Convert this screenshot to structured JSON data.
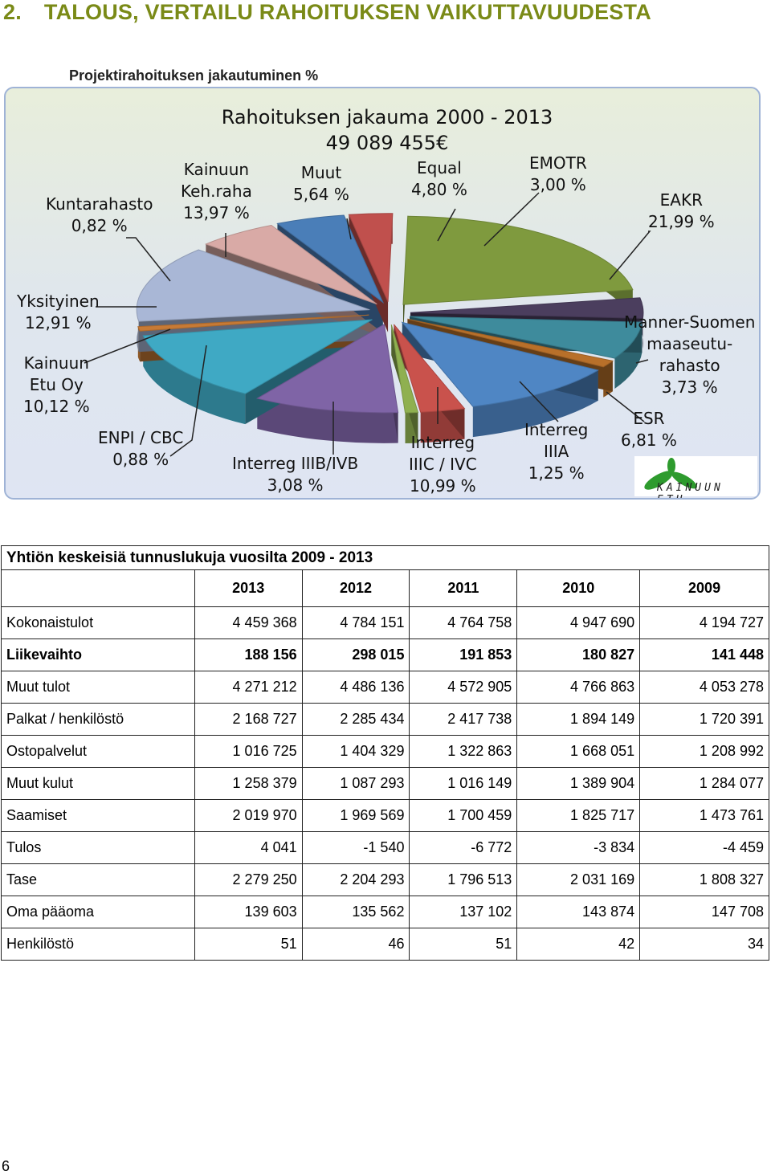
{
  "heading": {
    "number": "2.",
    "title": "TALOUS, VERTAILU RAHOITUKSEN VAIKUTTAVUUDESTA"
  },
  "subtitle": "Projektirahoituksen jakautuminen %",
  "colors": {
    "heading": "#7a8a17",
    "eakr": "#7f9a3e",
    "esr": "#3e8b9c",
    "manner": "#4b3e5e",
    "interreg_iiia": "#b8702a",
    "interreg_iiic": "#4f86c4",
    "interreg_iiib": "#c9524c",
    "enpi": "#8fb050",
    "etu_oy": "#7f64a6",
    "yksityinen": "#3fa9c4",
    "kuntarahasto": "#c77a35",
    "keh_raha": "#a9b7d6",
    "muut": "#d9aaa6",
    "equal": "#4a7eb8",
    "emotr": "#c0504d"
  },
  "chart_data": {
    "type": "pie",
    "title": "Rahoituksen jakauma 2000 - 2013",
    "subtitle": "49 089 455€",
    "slices": [
      {
        "label": "EAKR",
        "value": 21.99,
        "text": "21,99 %"
      },
      {
        "label": "Manner-Suomen maaseutu-rahasto",
        "value": 3.73,
        "text": "3,73 %"
      },
      {
        "label": "ESR",
        "value": 6.81,
        "text": "6,81 %"
      },
      {
        "label": "Interreg IIIA",
        "value": 1.25,
        "text": "1,25 %"
      },
      {
        "label": "Interreg IIIC / IVC",
        "value": 10.99,
        "text": "10,99 %"
      },
      {
        "label": "Interreg IIIB/IVB",
        "value": 3.08,
        "text": "3,08 %"
      },
      {
        "label": "ENPI / CBC",
        "value": 0.88,
        "text": "0,88 %"
      },
      {
        "label": "Kainuun Etu Oy",
        "value": 10.12,
        "text": "10,12 %"
      },
      {
        "label": "Yksityinen",
        "value": 12.91,
        "text": "12,91 %"
      },
      {
        "label": "Kuntarahasto",
        "value": 0.82,
        "text": "0,82 %"
      },
      {
        "label": "Kainuun Keh.raha",
        "value": 13.97,
        "text": "13,97 %"
      },
      {
        "label": "Muut",
        "value": 5.64,
        "text": "5,64 %"
      },
      {
        "label": "Equal",
        "value": 4.8,
        "text": "4,80 %"
      },
      {
        "label": "EMOTR",
        "value": 3.0,
        "text": "3,00 %"
      }
    ]
  },
  "chart_labels": {
    "eakr": [
      "EAKR",
      "21,99 %"
    ],
    "emotr": [
      "EMOTR",
      "3,00 %"
    ],
    "equal": [
      "Equal",
      "4,80 %"
    ],
    "muut": [
      "Muut",
      "5,64 %"
    ],
    "keh": [
      "Kainuun",
      "Keh.raha",
      "13,97 %"
    ],
    "kunta": [
      "Kuntarahasto",
      "0,82 %"
    ],
    "yks": [
      "Yksityinen",
      "12,91 %"
    ],
    "etu": [
      "Kainuun",
      "Etu Oy",
      "10,12 %"
    ],
    "enpi": [
      "ENPI / CBC",
      "0,88 %"
    ],
    "iiib": [
      "Interreg IIIB/IVB",
      "3,08 %"
    ],
    "iiic": [
      "Interreg",
      "IIIC / IVC",
      "10,99 %"
    ],
    "iiia": [
      "Interreg",
      "IIIA",
      "1,25 %"
    ],
    "esr": [
      "ESR",
      "6,81 %"
    ],
    "manner": [
      "Manner-Suomen",
      "maaseutu-",
      "rahasto",
      "3,73 %"
    ]
  },
  "logo_text": "KAINUUN ETU",
  "table": {
    "caption": "Yhtiön keskeisiä tunnuslukuja vuosilta 2009 - 2013",
    "years": [
      "2013",
      "2012",
      "2011",
      "2010",
      "2009"
    ],
    "rows": [
      {
        "name": "Kokonaistulot",
        "bold": false,
        "values": [
          "4 459 368",
          "4 784 151",
          "4 764 758",
          "4 947 690",
          "4 194 727"
        ]
      },
      {
        "name": "Liikevaihto",
        "bold": true,
        "values": [
          "188 156",
          "298 015",
          "191 853",
          "180 827",
          "141 448"
        ]
      },
      {
        "name": "Muut tulot",
        "bold": false,
        "values": [
          "4 271 212",
          "4 486 136",
          "4 572 905",
          "4 766 863",
          "4 053 278"
        ]
      },
      {
        "name": "Palkat / henkilöstö",
        "bold": false,
        "values": [
          "2 168 727",
          "2 285 434",
          "2 417 738",
          "1 894 149",
          "1 720 391"
        ]
      },
      {
        "name": "Ostopalvelut",
        "bold": false,
        "values": [
          "1 016 725",
          "1 404 329",
          "1 322 863",
          "1 668 051",
          "1 208 992"
        ]
      },
      {
        "name": "Muut kulut",
        "bold": false,
        "values": [
          "1 258 379",
          "1 087 293",
          "1 016 149",
          "1 389 904",
          "1 284 077"
        ]
      },
      {
        "name": "Saamiset",
        "bold": false,
        "values": [
          "2 019 970",
          "1 969 569",
          "1 700 459",
          "1 825 717",
          "1 473 761"
        ]
      },
      {
        "name": "Tulos",
        "bold": false,
        "values": [
          "4 041",
          "-1 540",
          "-6 772",
          "-3 834",
          "-4 459"
        ]
      },
      {
        "name": "Tase",
        "bold": false,
        "values": [
          "2 279 250",
          "2 204 293",
          "1 796 513",
          "2 031 169",
          "1 808 327"
        ]
      },
      {
        "name": "Oma pääoma",
        "bold": false,
        "values": [
          "139 603",
          "135 562",
          "137 102",
          "143 874",
          "147 708"
        ]
      },
      {
        "name": "Henkilöstö",
        "bold": false,
        "values": [
          "51",
          "46",
          "51",
          "42",
          "34"
        ]
      }
    ]
  },
  "page_number": "6"
}
